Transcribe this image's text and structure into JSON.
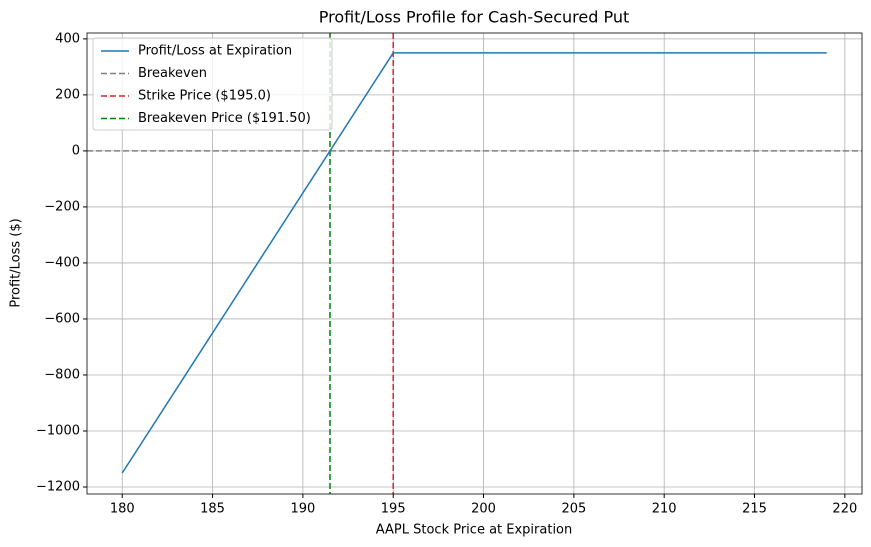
{
  "chart_data": {
    "type": "line",
    "title": "Profit/Loss Profile for Cash-Secured Put",
    "x_label": "AAPL Stock Price at Expiration",
    "y_label": "Profit/Loss ($)",
    "x": [
      180,
      195,
      219
    ],
    "series": [
      {
        "name": "Profit/Loss at Expiration",
        "color": "#1f77b4",
        "values": [
          -1150,
          350,
          350
        ]
      }
    ],
    "reference_lines": [
      {
        "name": "Breakeven",
        "axis": "y",
        "value": 0,
        "color": "#808080",
        "linestyle": "dashed"
      },
      {
        "name": "Strike Price ($195.0)",
        "axis": "x",
        "value": 195,
        "color": "#d62728",
        "linestyle": "dashed"
      },
      {
        "name": "Breakeven Price ($191.50)",
        "axis": "x",
        "value": 191.5,
        "color": "#008000",
        "linestyle": "dashed"
      }
    ],
    "xlim": [
      178.05,
      220.95
    ],
    "ylim": [
      -1225,
      421
    ],
    "xticks": [
      180,
      185,
      190,
      195,
      200,
      205,
      210,
      215,
      220
    ],
    "yticks": [
      {
        "value": -1200,
        "label": "−1200"
      },
      {
        "value": -1000,
        "label": "−1000"
      },
      {
        "value": -800,
        "label": "−800"
      },
      {
        "value": -600,
        "label": "−600"
      },
      {
        "value": -400,
        "label": "−400"
      },
      {
        "value": -200,
        "label": "−200"
      },
      0,
      200,
      400
    ],
    "grid": true,
    "legend": "upper left"
  }
}
